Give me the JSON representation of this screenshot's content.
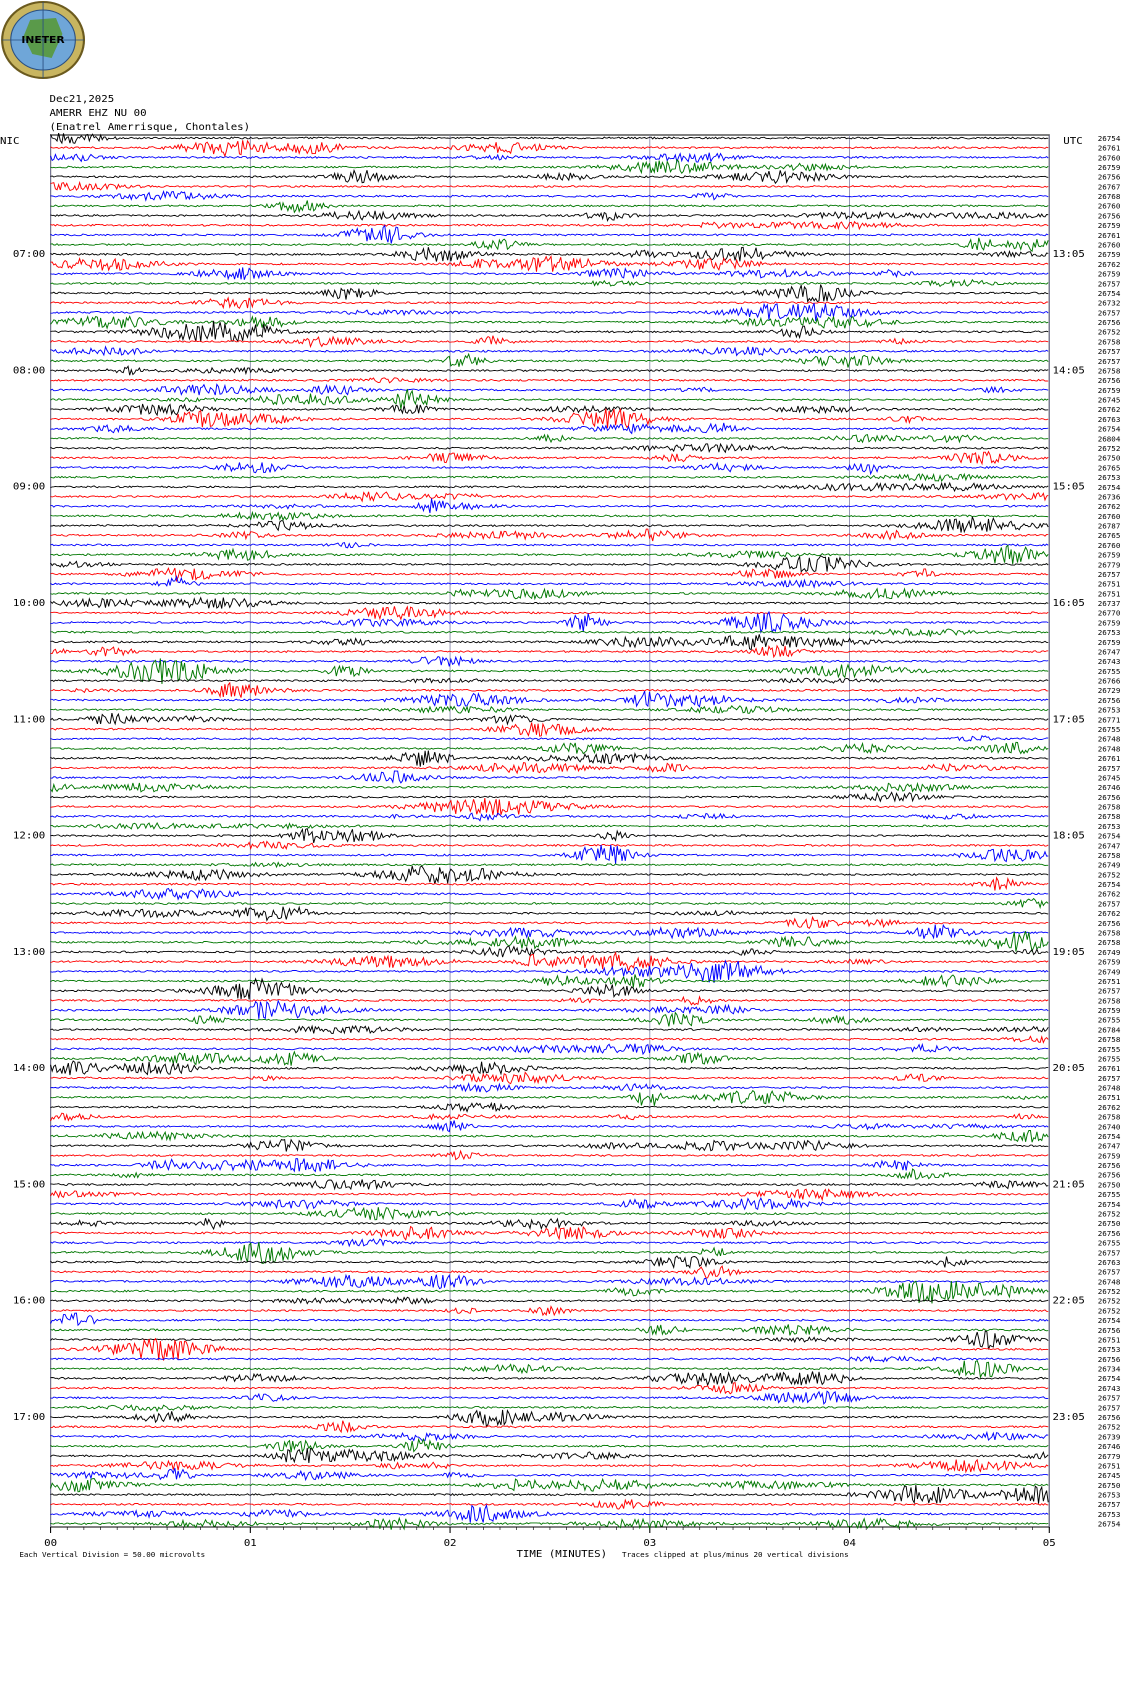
{
  "logo_text": "INETER",
  "chart_data": {
    "type": "helicorder",
    "title_lines": [
      "Dec21,2025",
      "AMERR EHZ NU 00",
      "(Enatrel Amerrisque, Chontales)"
    ],
    "left_zone": "NIC",
    "right_zone": "UTC",
    "x_label": "TIME (MINUTES)",
    "scale_note": "Each Vertical Division =   50.00 microvolts",
    "clip_note": "Traces clipped at plus/minus 20 vertical divisions",
    "xlim": [
      0,
      5
    ],
    "xticks": [
      {
        "value": 0,
        "label": "00"
      },
      {
        "value": 1,
        "label": "01"
      },
      {
        "value": 2,
        "label": "02"
      },
      {
        "value": 3,
        "label": "03"
      },
      {
        "value": 4,
        "label": "04"
      },
      {
        "value": 5,
        "label": "05"
      }
    ],
    "colors": [
      "#000000",
      "#ff0000",
      "#0000ff",
      "#007700"
    ],
    "left_labels": [
      "07:00",
      "08:00",
      "09:00",
      "10:00",
      "11:00",
      "12:00",
      "13:00",
      "14:00",
      "15:00",
      "16:00",
      "17:00"
    ],
    "right_labels": [
      "13:05",
      "14:05",
      "15:05",
      "16:05",
      "17:05",
      "18:05",
      "19:05",
      "20:05",
      "21:05",
      "22:05",
      "23:05"
    ],
    "trace_values": [
      26754,
      26761,
      26760,
      26759,
      26756,
      26767,
      26768,
      26760,
      26756,
      26759,
      26761,
      26760,
      26759,
      26762,
      26759,
      26757,
      26754,
      26732,
      26757,
      26756,
      26752,
      26758,
      26757,
      26757,
      26758,
      26756,
      26759,
      26745,
      26762,
      26763,
      26754,
      26804,
      26752,
      26750,
      26765,
      26753,
      26754,
      26736,
      26762,
      26760,
      26787,
      26765,
      26760,
      26759,
      26779,
      26757,
      26751,
      26751,
      26737,
      26770,
      26759,
      26753,
      26759,
      26747,
      26743,
      26755,
      26766,
      26729,
      26756,
      26753,
      26771,
      26755,
      26748,
      26748,
      26761,
      26757,
      26745,
      26746,
      26756,
      26758,
      26758,
      26753,
      26754,
      26747,
      26758,
      26749,
      26752,
      26754,
      26762,
      26757,
      26762,
      26756,
      26758,
      26758,
      26749,
      26759,
      26749,
      26751,
      26757,
      26758,
      26759,
      26755,
      26784,
      26758,
      26755,
      26755,
      26761,
      26757,
      26748,
      26751,
      26762,
      26758,
      26740,
      26754,
      26747,
      26759,
      26756,
      26756,
      26750,
      26755,
      26754,
      26752,
      26750,
      26756,
      26755,
      26757,
      26763,
      26757,
      26748,
      26752,
      26752,
      26752,
      26754,
      26756,
      26751,
      26753,
      26756,
      26734,
      26754,
      26743,
      26757,
      26757,
      26756,
      26752,
      26739,
      26746,
      26779,
      26751,
      26745,
      26750,
      26753,
      26757,
      26753,
      26754
    ]
  }
}
